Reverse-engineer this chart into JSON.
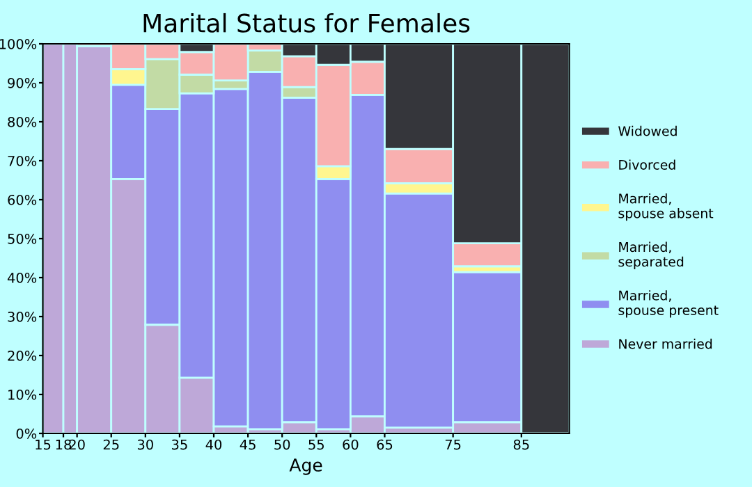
{
  "chart_data": {
    "type": "bar",
    "stacked": true,
    "title": "Marital Status for Females",
    "xlabel": "Age",
    "x": [
      16.5,
      19,
      22.5,
      27.5,
      32.5,
      37.5,
      42.5,
      47.5,
      52.5,
      57.5,
      62.5,
      70,
      80,
      88.5
    ],
    "xlim": [
      15,
      92
    ],
    "xticks": [
      15,
      18,
      20,
      25,
      30,
      35,
      40,
      45,
      50,
      55,
      60,
      65,
      75,
      85
    ],
    "ylim": [
      0,
      100
    ],
    "yticks": [
      {
        "value": 0,
        "label": "0%"
      },
      {
        "value": 10,
        "label": "10%"
      },
      {
        "value": 20,
        "label": "20%"
      },
      {
        "value": 30,
        "label": "30%"
      },
      {
        "value": 40,
        "label": "40%"
      },
      {
        "value": 50,
        "label": "50%"
      },
      {
        "value": 60,
        "label": "60%"
      },
      {
        "value": 70,
        "label": "70%"
      },
      {
        "value": 80,
        "label": "80%"
      },
      {
        "value": 90,
        "label": "90%"
      },
      {
        "value": 100,
        "label": "100%"
      }
    ],
    "legend": "right",
    "grid": false,
    "series": [
      {
        "name": "Never married",
        "color": "#bea8d8",
        "values": [
          100,
          100,
          99.4,
          65.3,
          27.9,
          14.3,
          1.8,
          1.1,
          2.9,
          1.1,
          4.4,
          1.5,
          2.9,
          0
        ]
      },
      {
        "name": "Married,\nspouse present",
        "color": "#8f8ef0",
        "values": [
          0,
          0,
          0,
          24.2,
          55.4,
          73.0,
          86.6,
          91.7,
          83.3,
          64.2,
          82.5,
          60.1,
          38.5,
          0
        ]
      },
      {
        "name": "Married,\nseparated",
        "color": "#c2dba5",
        "values": [
          0,
          0,
          0,
          0,
          12.8,
          4.8,
          2.2,
          5.5,
          2.7,
          0,
          0,
          0,
          0,
          0
        ]
      },
      {
        "name": "Married,\nspouse absent",
        "color": "#fff68f",
        "values": [
          0,
          0,
          0,
          4.0,
          0,
          0,
          0,
          0,
          0,
          3.3,
          0,
          2.6,
          1.5,
          0
        ]
      },
      {
        "name": "Divorced",
        "color": "#f9b0b0",
        "values": [
          0,
          0,
          0.6,
          6.5,
          3.9,
          5.8,
          9.4,
          1.7,
          7.9,
          26.0,
          8.5,
          8.8,
          5.9,
          0
        ]
      },
      {
        "name": "Widowed",
        "color": "#35363b",
        "values": [
          0,
          0,
          0,
          0,
          0,
          2.1,
          0,
          0,
          3.2,
          5.4,
          4.6,
          27.0,
          51.2,
          100
        ]
      }
    ]
  }
}
